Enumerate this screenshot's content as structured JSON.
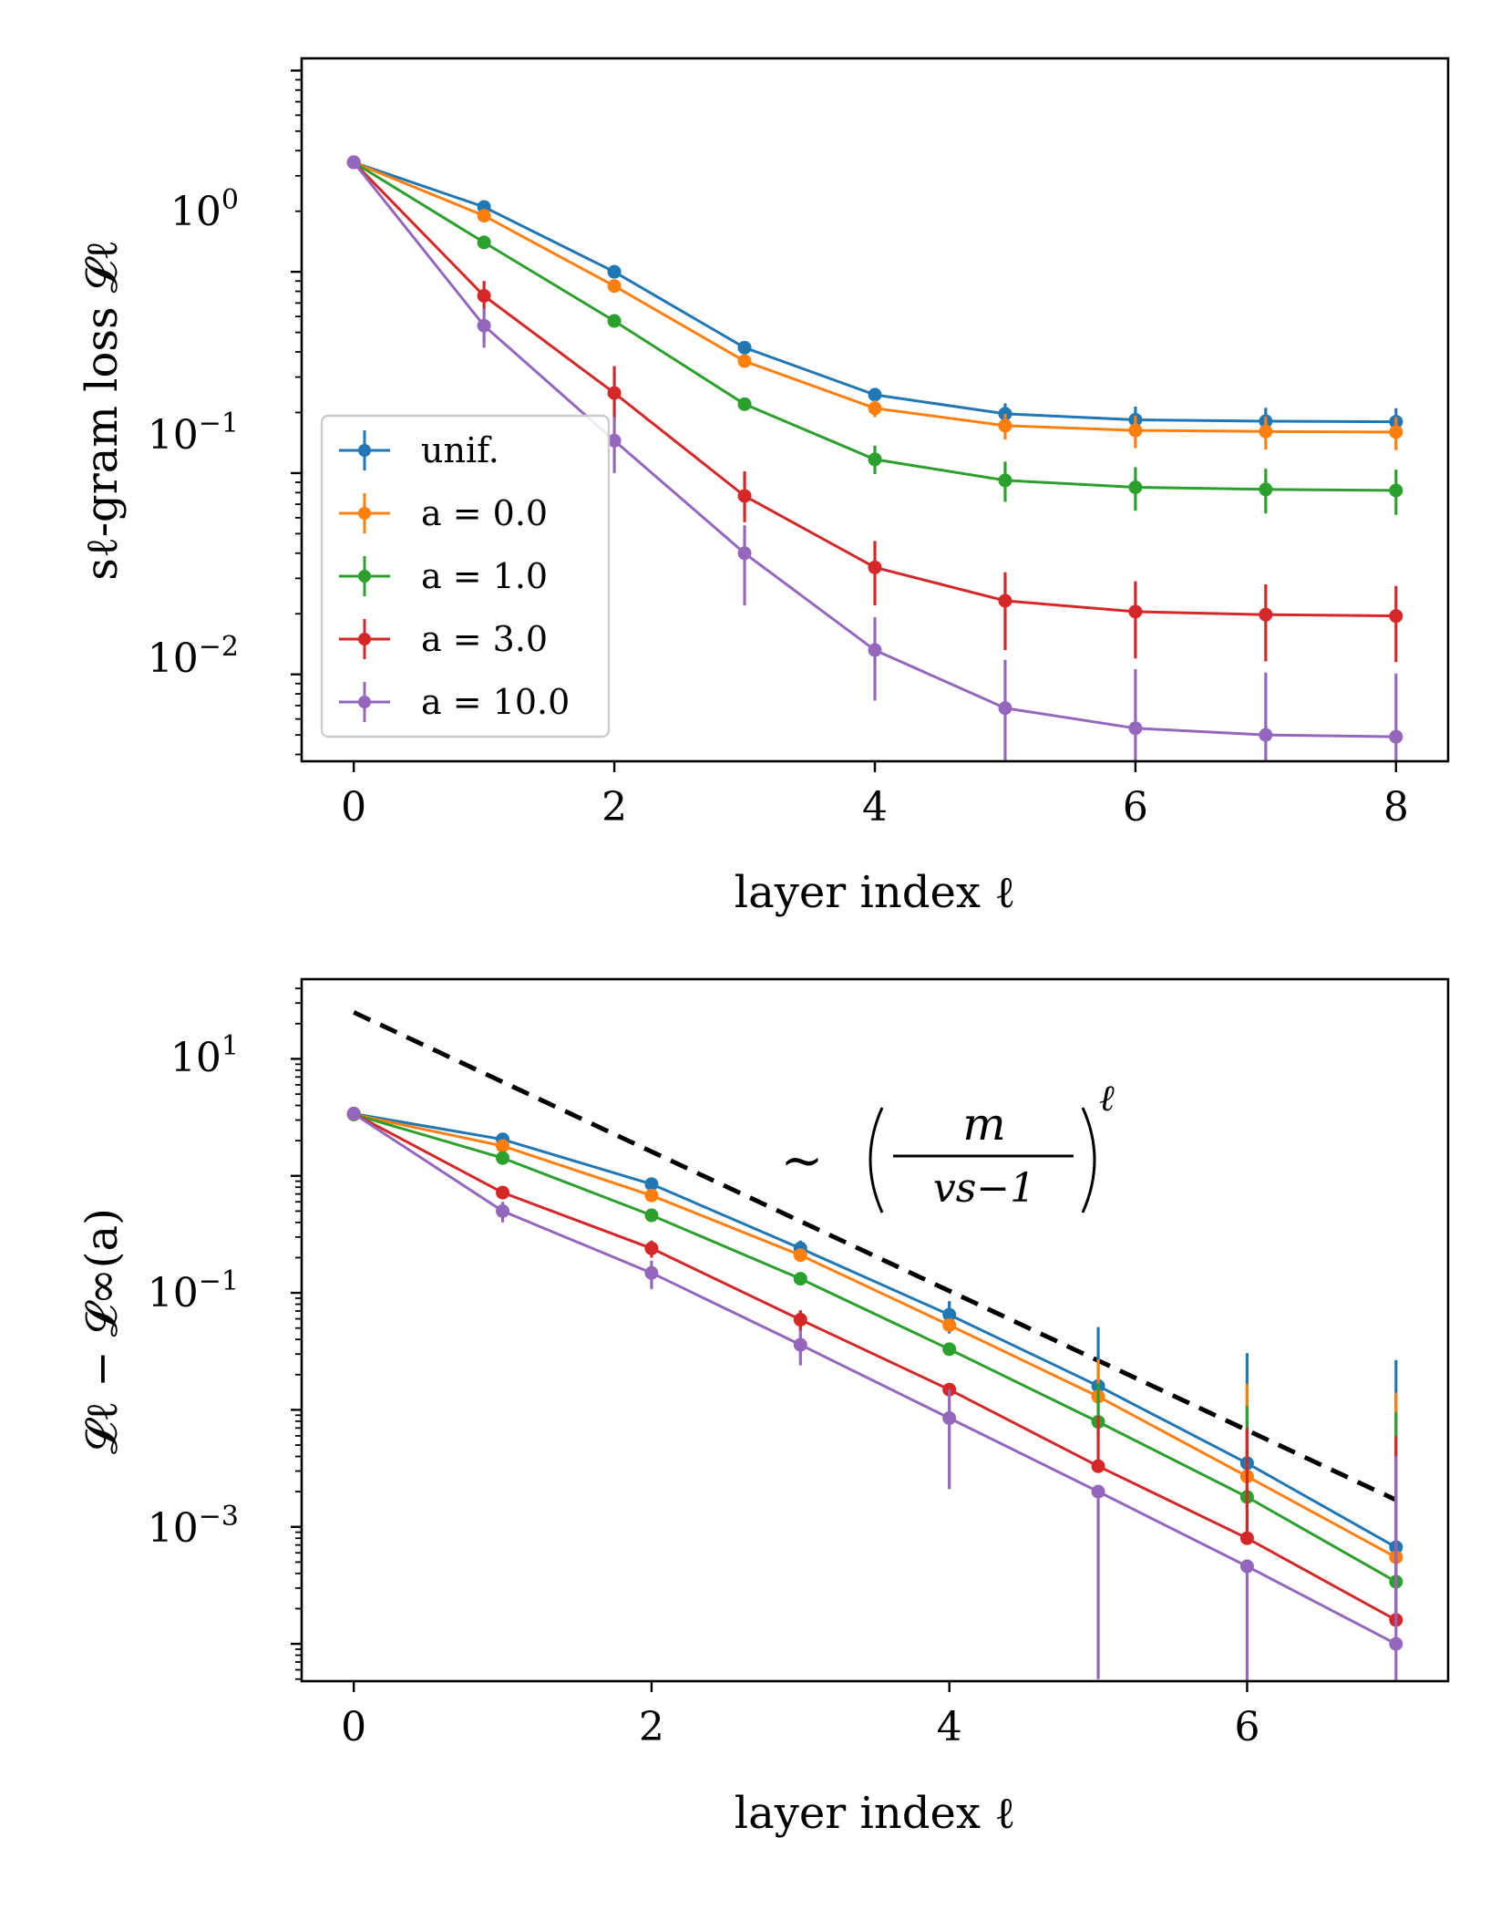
{
  "colors": {
    "unif": "#1f77b4",
    "a0": "#ff7f0e",
    "a1": "#2ca02c",
    "a3": "#d62728",
    "a10": "#9467bd",
    "ref_line": "#000000"
  },
  "chart_data": [
    {
      "type": "line",
      "scale": "log-y",
      "xlabel": "layer index ℓ",
      "ylabel": "sℓ-gram loss 𝓛ℓ",
      "xlim": [
        -0.4,
        8.4
      ],
      "ylim": [
        0.0037,
        11.5
      ],
      "xticks": [
        "0",
        "2",
        "4",
        "6",
        "8"
      ],
      "ytick_labels": [
        {
          "base": "10",
          "exp": "0",
          "value": 1
        },
        {
          "base": "10",
          "exp": "−1",
          "value": 0.1
        },
        {
          "base": "10",
          "exp": "−2",
          "value": 0.01
        }
      ],
      "legend": {
        "placement": "lower-left",
        "entries": [
          "unif.",
          "a = 0.0",
          "a = 1.0",
          "a = 3.0",
          "a = 10.0"
        ]
      },
      "x": [
        0,
        1,
        2,
        3,
        4,
        5,
        6,
        7,
        8
      ],
      "series": [
        {
          "name": "unif.",
          "color_key": "unif",
          "values": [
            3.5,
            2.1,
            1.0,
            0.42,
            0.245,
            0.197,
            0.184,
            0.181,
            0.18
          ],
          "err_low": [
            0,
            0,
            0,
            0.02,
            0.02,
            0.025,
            0.03,
            0.03,
            0.03
          ],
          "err_high": [
            0,
            0,
            0,
            0.02,
            0.02,
            0.025,
            0.03,
            0.03,
            0.03
          ]
        },
        {
          "name": "a = 0.0",
          "color_key": "a0",
          "values": [
            3.5,
            1.9,
            0.85,
            0.36,
            0.21,
            0.172,
            0.163,
            0.161,
            0.16
          ],
          "err_low": [
            0,
            0,
            0,
            0,
            0.02,
            0.025,
            0.03,
            0.03,
            0.03
          ],
          "err_high": [
            0,
            0,
            0,
            0,
            0.02,
            0.025,
            0.03,
            0.03,
            0.03
          ]
        },
        {
          "name": "a = 1.0",
          "color_key": "a1",
          "values": [
            3.5,
            1.4,
            0.57,
            0.22,
            0.117,
            0.092,
            0.085,
            0.083,
            0.082
          ],
          "err_low": [
            0,
            0,
            0,
            0,
            0.018,
            0.02,
            0.02,
            0.02,
            0.02
          ],
          "err_high": [
            0,
            0,
            0,
            0,
            0.02,
            0.022,
            0.022,
            0.022,
            0.022
          ]
        },
        {
          "name": "a = 3.0",
          "color_key": "a3",
          "values": [
            3.5,
            0.76,
            0.25,
            0.077,
            0.034,
            0.0232,
            0.0205,
            0.0198,
            0.0195
          ],
          "err_low": [
            0,
            0.12,
            0.07,
            0.02,
            0.012,
            0.01,
            0.0085,
            0.0082,
            0.008
          ],
          "err_high": [
            0,
            0.14,
            0.09,
            0.025,
            0.012,
            0.009,
            0.0085,
            0.0082,
            0.008
          ]
        },
        {
          "name": "a = 10.0",
          "color_key": "a10",
          "values": [
            3.5,
            0.54,
            0.145,
            0.04,
            0.0132,
            0.0068,
            0.0054,
            0.005,
            0.0049
          ],
          "err_low": [
            0,
            0.12,
            0.045,
            0.018,
            0.0058,
            0.0032,
            0.0018,
            0.0014,
            0.0012
          ],
          "err_high": [
            0,
            0.12,
            0.045,
            0.015,
            0.006,
            0.005,
            0.0052,
            0.0052,
            0.0052
          ]
        }
      ]
    },
    {
      "type": "line",
      "scale": "log-y",
      "xlabel": "layer index ℓ",
      "ylabel": "𝓛ℓ − 𝓛∞(a)",
      "xlim": [
        -0.35,
        7.35
      ],
      "ylim": [
        4.8e-05,
        48
      ],
      "xticks": [
        "0",
        "2",
        "4",
        "6"
      ],
      "ytick_labels": [
        {
          "base": "10",
          "exp": "1",
          "value": 10
        },
        {
          "base": "10",
          "exp": "−1",
          "value": 0.1
        },
        {
          "base": "10",
          "exp": "−3",
          "value": 0.001
        }
      ],
      "annotation": {
        "tilde": "~",
        "numerator": "m",
        "denominator": "vs−1",
        "exponent": "ℓ"
      },
      "x": [
        0,
        1,
        2,
        3,
        4,
        5,
        6,
        7
      ],
      "reference_line": {
        "x": [
          0,
          7
        ],
        "values": [
          25,
          0.0017
        ]
      },
      "series": [
        {
          "name": "unif.",
          "color_key": "unif",
          "values": [
            3.4,
            2.05,
            0.85,
            0.24,
            0.065,
            0.016,
            0.0035,
            0.00067
          ],
          "err_low": [
            0,
            0,
            0,
            0,
            0.02,
            0.01,
            0.0025,
            0.0005
          ],
          "err_high": [
            0,
            0,
            0,
            0.04,
            0.02,
            0.035,
            0.027,
            0.026
          ]
        },
        {
          "name": "a = 0.0",
          "color_key": "a0",
          "values": [
            3.35,
            1.8,
            0.68,
            0.21,
            0.053,
            0.013,
            0.0027,
            0.00055
          ],
          "err_low": [
            0,
            0,
            0,
            0,
            0,
            0,
            0,
            0
          ],
          "err_high": [
            0,
            0,
            0,
            0,
            0,
            0.014,
            0.014,
            0.0135
          ]
        },
        {
          "name": "a = 1.0",
          "color_key": "a1",
          "values": [
            3.35,
            1.42,
            0.46,
            0.132,
            0.033,
            0.0079,
            0.0018,
            0.00034
          ],
          "err_low": [
            0,
            0,
            0,
            0,
            0,
            0,
            0,
            0
          ],
          "err_high": [
            0,
            0,
            0,
            0,
            0,
            0.009,
            0.009,
            0.0092
          ]
        },
        {
          "name": "a = 3.0",
          "color_key": "a3",
          "values": [
            3.4,
            0.72,
            0.24,
            0.059,
            0.0149,
            0.0033,
            0.0008,
            0.00016
          ],
          "err_low": [
            0,
            0.05,
            0.04,
            0.012,
            0,
            0,
            0,
            0
          ],
          "err_high": [
            0,
            0.05,
            0.04,
            0.012,
            0,
            0.0056,
            0.0062,
            0.0058
          ]
        },
        {
          "name": "a = 10.0",
          "color_key": "a10",
          "values": [
            3.4,
            0.5,
            0.148,
            0.036,
            0.0085,
            0.002,
            0.00046,
            0.0001
          ],
          "err_low": [
            0,
            0.1,
            0.04,
            0.012,
            0.0064,
            0.00195,
            0.000415,
            5.2e-05
          ],
          "err_high": [
            0,
            0.1,
            0.04,
            0.012,
            0.0064,
            0.0,
            0.0,
            0.0039
          ]
        }
      ]
    }
  ]
}
